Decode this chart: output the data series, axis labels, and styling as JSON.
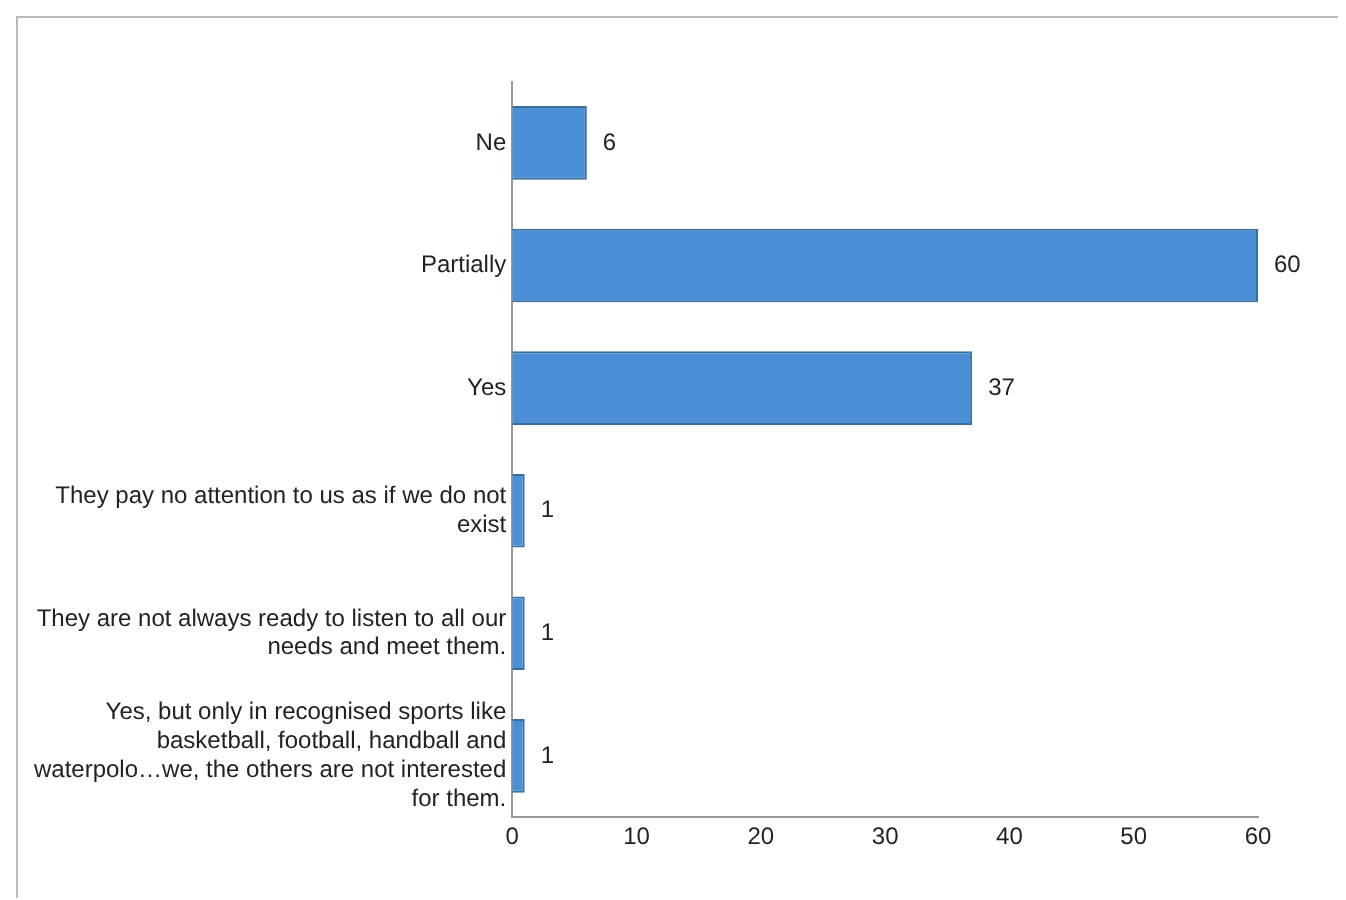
{
  "chart_data": {
    "type": "bar",
    "orientation": "horizontal",
    "categories": [
      "Ne",
      "Partially",
      "Yes",
      "They pay no attention to us as if we do not exist",
      "They are not always ready to listen to all our needs and meet them.",
      "Yes, but only in recognised sports like basketball, football, handball and waterpolo…we, the others are not interested for them."
    ],
    "values": [
      6,
      60,
      37,
      1,
      1,
      1
    ],
    "color": "#4a8fd6",
    "xlim": [
      0,
      60
    ],
    "xticks": [
      0,
      10,
      20,
      30,
      40,
      50,
      60
    ],
    "grid": false,
    "legend": false,
    "data_labels": true
  }
}
